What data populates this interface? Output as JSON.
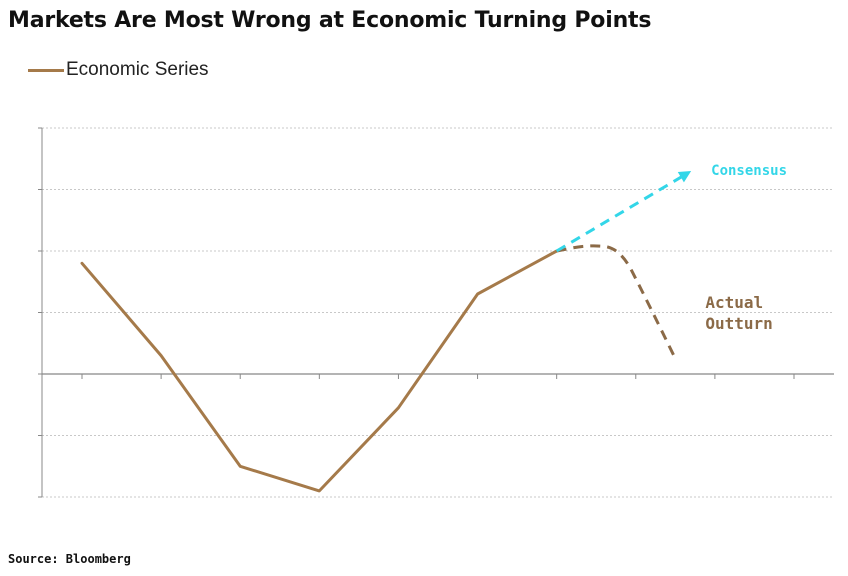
{
  "chart_data": {
    "type": "line",
    "title": "Markets Are Most Wrong at Economic Turning Points",
    "xlabel": "",
    "ylabel": "",
    "x": [
      0,
      1,
      2,
      3,
      4,
      5,
      6,
      7,
      8,
      9
    ],
    "xlim": [
      -0.5,
      9.5
    ],
    "ylim": [
      -2,
      4
    ],
    "grid": true,
    "legend": "top-left",
    "series": [
      {
        "name": "Economic Series",
        "style": "solid",
        "color": "#a57a4a",
        "x": [
          0,
          1,
          2,
          3,
          4,
          5,
          6
        ],
        "values": [
          1.8,
          0.3,
          -1.5,
          -1.9,
          -0.55,
          1.3,
          2.0
        ]
      },
      {
        "label": "Consensus",
        "style": "dashed",
        "color": "#33d6e8",
        "x": [
          6,
          7.7
        ],
        "values": [
          2.0,
          3.3
        ]
      },
      {
        "label": "Actual\nOutturn",
        "style": "dashed",
        "color": "#8b6a47",
        "x": [
          6,
          6.4,
          6.8,
          7.1,
          7.5
        ],
        "values": [
          2.0,
          2.1,
          2.05,
          1.3,
          0.25
        ]
      }
    ],
    "annotations": [
      "Consensus",
      "Actual",
      "Outturn"
    ]
  },
  "source": "Source: Bloomberg",
  "colors": {
    "economic": "#a57a4a",
    "consensus": "#33d6e8",
    "actual": "#8b6a47",
    "grid": "#c8c8c8",
    "axis": "#888888"
  }
}
